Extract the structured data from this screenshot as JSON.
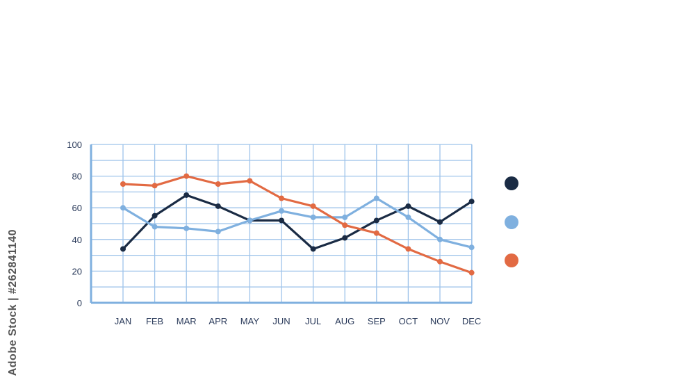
{
  "chart_data": {
    "type": "line",
    "categories": [
      "JAN",
      "FEB",
      "MAR",
      "APR",
      "MAY",
      "JUN",
      "JUL",
      "AUG",
      "SEP",
      "OCT",
      "NOV",
      "DEC"
    ],
    "ylim": [
      0,
      100
    ],
    "yticks": [
      0,
      20,
      40,
      60,
      80,
      100
    ],
    "grid": true,
    "legend": "right",
    "series": [
      {
        "color": "#1a2b44",
        "values": [
          34,
          55,
          68,
          61,
          52,
          52,
          34,
          41,
          52,
          61,
          51,
          64
        ]
      },
      {
        "color": "#7fb0df",
        "values": [
          60,
          48,
          47,
          45,
          52,
          58,
          54,
          54,
          66,
          54,
          40,
          35
        ]
      },
      {
        "color": "#e26a43",
        "values": [
          75,
          74,
          80,
          75,
          77,
          66,
          61,
          49,
          44,
          34,
          26,
          19
        ]
      }
    ]
  },
  "credit": "Adobe Stock | #262841140",
  "colors": {
    "grid": "#9ec3ea",
    "axis": "#7fb0df"
  }
}
